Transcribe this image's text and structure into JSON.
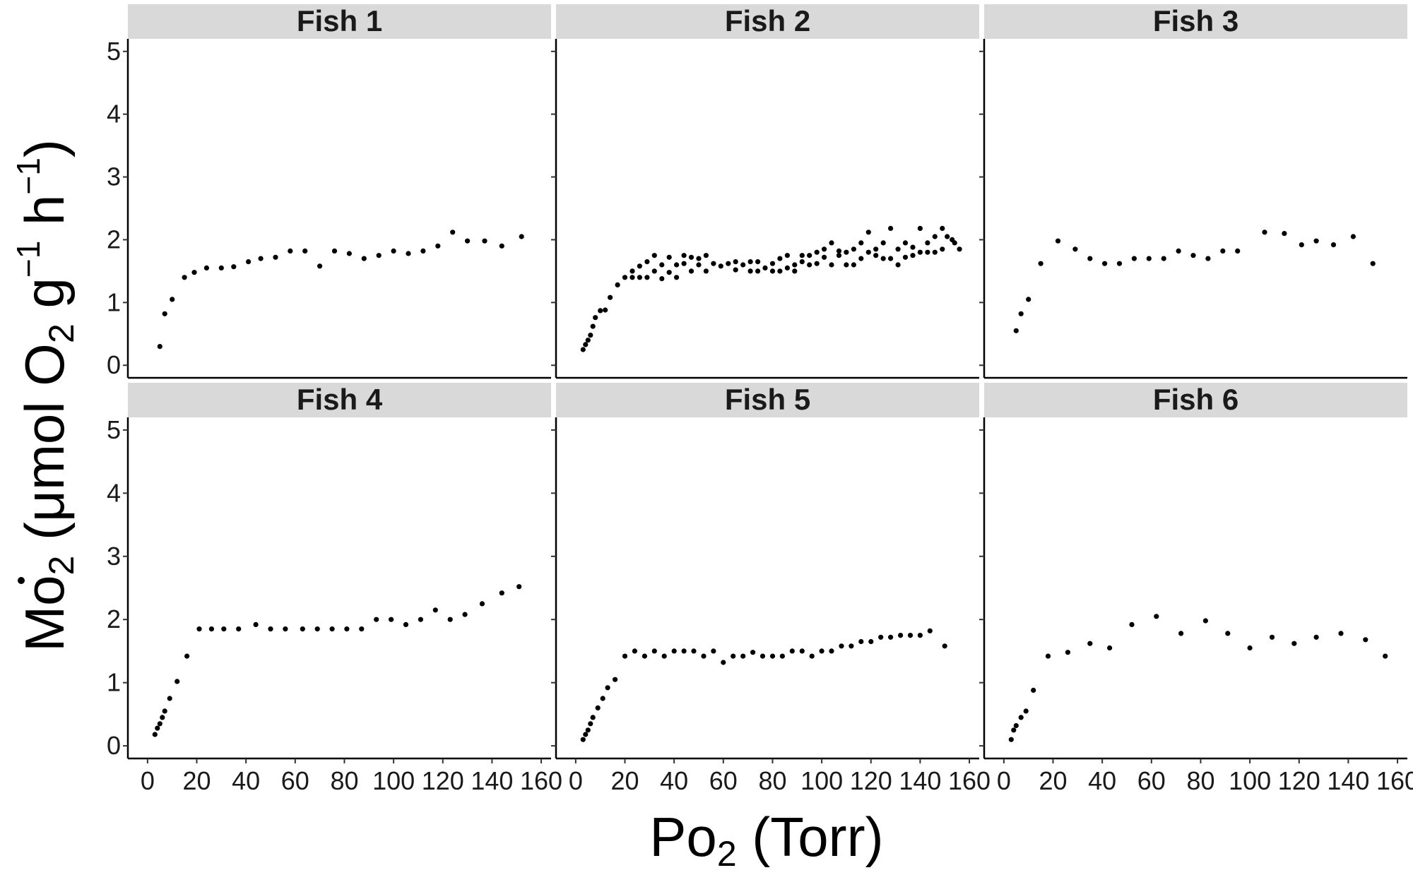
{
  "chart_data": {
    "type": "scatter",
    "layout": "facet-grid-2x3",
    "title": "",
    "xlabel": {
      "main": "Po",
      "sub": "2",
      "unit": " (Torr)"
    },
    "ylabel": {
      "main": "Mo",
      "sub": "2",
      "open": " (μmol O",
      "sub2": "2",
      "g": " g",
      "sup1": "−1",
      "h": " h",
      "sup2": "−1",
      "close": ")"
    },
    "xlim": [
      -8,
      164
    ],
    "ylim": [
      -0.2,
      5.2
    ],
    "x_ticks": [
      "0",
      "20",
      "40",
      "60",
      "80",
      "100",
      "120",
      "140",
      "160"
    ],
    "x_tick_values": [
      0,
      20,
      40,
      60,
      80,
      100,
      120,
      140,
      160
    ],
    "y_ticks": [
      "0",
      "1",
      "2",
      "3",
      "4",
      "5"
    ],
    "y_tick_values": [
      0,
      1,
      2,
      3,
      4,
      5
    ],
    "grid": false,
    "point_color": "#000000",
    "strip_color": "#d9d9d9",
    "panels": [
      {
        "name": "Fish 1",
        "points": [
          [
            5,
            0.3
          ],
          [
            7,
            0.82
          ],
          [
            10,
            1.05
          ],
          [
            15,
            1.4
          ],
          [
            19,
            1.48
          ],
          [
            24,
            1.55
          ],
          [
            30,
            1.55
          ],
          [
            35,
            1.57
          ],
          [
            41,
            1.65
          ],
          [
            46,
            1.7
          ],
          [
            52,
            1.72
          ],
          [
            58,
            1.82
          ],
          [
            64,
            1.82
          ],
          [
            70,
            1.58
          ],
          [
            76,
            1.82
          ],
          [
            82,
            1.78
          ],
          [
            88,
            1.7
          ],
          [
            94,
            1.75
          ],
          [
            100,
            1.82
          ],
          [
            106,
            1.78
          ],
          [
            112,
            1.82
          ],
          [
            118,
            1.9
          ],
          [
            124,
            2.12
          ],
          [
            130,
            1.98
          ],
          [
            137,
            1.98
          ],
          [
            144,
            1.9
          ],
          [
            152,
            2.05
          ]
        ]
      },
      {
        "name": "Fish 2",
        "points": [
          [
            3,
            0.25
          ],
          [
            4,
            0.33
          ],
          [
            5,
            0.4
          ],
          [
            6,
            0.48
          ],
          [
            7,
            0.62
          ],
          [
            8,
            0.76
          ],
          [
            10,
            0.87
          ],
          [
            12,
            0.88
          ],
          [
            14,
            1.08
          ],
          [
            17,
            1.28
          ],
          [
            20,
            1.4
          ],
          [
            23,
            1.4
          ],
          [
            23,
            1.5
          ],
          [
            26,
            1.4
          ],
          [
            26,
            1.58
          ],
          [
            29,
            1.4
          ],
          [
            29,
            1.65
          ],
          [
            32,
            1.5
          ],
          [
            32,
            1.75
          ],
          [
            35,
            1.38
          ],
          [
            35,
            1.6
          ],
          [
            38,
            1.48
          ],
          [
            38,
            1.72
          ],
          [
            41,
            1.4
          ],
          [
            41,
            1.6
          ],
          [
            44,
            1.62
          ],
          [
            44,
            1.75
          ],
          [
            47,
            1.5
          ],
          [
            47,
            1.72
          ],
          [
            50,
            1.6
          ],
          [
            50,
            1.7
          ],
          [
            53,
            1.5
          ],
          [
            53,
            1.75
          ],
          [
            56,
            1.62
          ],
          [
            59,
            1.58
          ],
          [
            62,
            1.62
          ],
          [
            65,
            1.52
          ],
          [
            65,
            1.65
          ],
          [
            68,
            1.6
          ],
          [
            71,
            1.5
          ],
          [
            71,
            1.65
          ],
          [
            74,
            1.5
          ],
          [
            74,
            1.65
          ],
          [
            77,
            1.55
          ],
          [
            80,
            1.5
          ],
          [
            80,
            1.62
          ],
          [
            83,
            1.5
          ],
          [
            83,
            1.7
          ],
          [
            86,
            1.55
          ],
          [
            86,
            1.75
          ],
          [
            89,
            1.5
          ],
          [
            89,
            1.6
          ],
          [
            92,
            1.65
          ],
          [
            92,
            1.75
          ],
          [
            95,
            1.6
          ],
          [
            95,
            1.75
          ],
          [
            98,
            1.62
          ],
          [
            98,
            1.8
          ],
          [
            101,
            1.72
          ],
          [
            101,
            1.85
          ],
          [
            104,
            1.6
          ],
          [
            104,
            1.95
          ],
          [
            107,
            1.75
          ],
          [
            107,
            1.82
          ],
          [
            110,
            1.6
          ],
          [
            110,
            1.8
          ],
          [
            113,
            1.6
          ],
          [
            113,
            1.85
          ],
          [
            116,
            1.7
          ],
          [
            116,
            1.95
          ],
          [
            119,
            1.8
          ],
          [
            119,
            2.12
          ],
          [
            122,
            1.75
          ],
          [
            122,
            1.85
          ],
          [
            125,
            1.7
          ],
          [
            125,
            1.95
          ],
          [
            128,
            1.7
          ],
          [
            128,
            2.18
          ],
          [
            131,
            1.6
          ],
          [
            131,
            1.85
          ],
          [
            134,
            1.72
          ],
          [
            134,
            1.95
          ],
          [
            137,
            1.75
          ],
          [
            137,
            1.88
          ],
          [
            140,
            1.8
          ],
          [
            140,
            2.18
          ],
          [
            143,
            1.8
          ],
          [
            143,
            1.95
          ],
          [
            146,
            1.8
          ],
          [
            146,
            2.05
          ],
          [
            149,
            1.85
          ],
          [
            149,
            2.18
          ],
          [
            151,
            2.05
          ],
          [
            153,
            2.0
          ],
          [
            154,
            1.95
          ],
          [
            156,
            1.85
          ]
        ]
      },
      {
        "name": "Fish 3",
        "points": [
          [
            5,
            0.55
          ],
          [
            7,
            0.82
          ],
          [
            10,
            1.05
          ],
          [
            15,
            1.62
          ],
          [
            22,
            1.98
          ],
          [
            29,
            1.85
          ],
          [
            35,
            1.7
          ],
          [
            41,
            1.62
          ],
          [
            47,
            1.62
          ],
          [
            53,
            1.7
          ],
          [
            59,
            1.7
          ],
          [
            65,
            1.7
          ],
          [
            71,
            1.82
          ],
          [
            77,
            1.75
          ],
          [
            83,
            1.7
          ],
          [
            89,
            1.82
          ],
          [
            95,
            1.82
          ],
          [
            106,
            2.12
          ],
          [
            114,
            2.1
          ],
          [
            121,
            1.92
          ],
          [
            127,
            1.98
          ],
          [
            134,
            1.92
          ],
          [
            142,
            2.05
          ],
          [
            150,
            1.62
          ]
        ]
      },
      {
        "name": "Fish 4",
        "points": [
          [
            3,
            0.18
          ],
          [
            4,
            0.28
          ],
          [
            5,
            0.35
          ],
          [
            6,
            0.45
          ],
          [
            7,
            0.55
          ],
          [
            9,
            0.75
          ],
          [
            12,
            1.02
          ],
          [
            16,
            1.42
          ],
          [
            21,
            1.85
          ],
          [
            26,
            1.85
          ],
          [
            31,
            1.85
          ],
          [
            37,
            1.85
          ],
          [
            44,
            1.92
          ],
          [
            50,
            1.85
          ],
          [
            56,
            1.85
          ],
          [
            63,
            1.85
          ],
          [
            69,
            1.85
          ],
          [
            75,
            1.85
          ],
          [
            81,
            1.85
          ],
          [
            87,
            1.85
          ],
          [
            93,
            2.0
          ],
          [
            99,
            2.0
          ],
          [
            105,
            1.92
          ],
          [
            111,
            2.0
          ],
          [
            117,
            2.15
          ],
          [
            123,
            2.0
          ],
          [
            129,
            2.08
          ],
          [
            136,
            2.25
          ],
          [
            144,
            2.42
          ],
          [
            151,
            2.52
          ]
        ]
      },
      {
        "name": "Fish 5",
        "points": [
          [
            3,
            0.1
          ],
          [
            4,
            0.18
          ],
          [
            5,
            0.25
          ],
          [
            6,
            0.35
          ],
          [
            7,
            0.45
          ],
          [
            9,
            0.6
          ],
          [
            11,
            0.75
          ],
          [
            13,
            0.92
          ],
          [
            16,
            1.05
          ],
          [
            20,
            1.42
          ],
          [
            24,
            1.5
          ],
          [
            28,
            1.42
          ],
          [
            32,
            1.5
          ],
          [
            36,
            1.42
          ],
          [
            40,
            1.5
          ],
          [
            44,
            1.5
          ],
          [
            48,
            1.5
          ],
          [
            52,
            1.42
          ],
          [
            56,
            1.5
          ],
          [
            60,
            1.32
          ],
          [
            64,
            1.42
          ],
          [
            68,
            1.42
          ],
          [
            72,
            1.48
          ],
          [
            76,
            1.42
          ],
          [
            80,
            1.42
          ],
          [
            84,
            1.42
          ],
          [
            88,
            1.5
          ],
          [
            92,
            1.5
          ],
          [
            96,
            1.42
          ],
          [
            100,
            1.5
          ],
          [
            104,
            1.5
          ],
          [
            108,
            1.58
          ],
          [
            112,
            1.58
          ],
          [
            116,
            1.65
          ],
          [
            120,
            1.65
          ],
          [
            124,
            1.72
          ],
          [
            128,
            1.72
          ],
          [
            132,
            1.75
          ],
          [
            136,
            1.75
          ],
          [
            140,
            1.75
          ],
          [
            144,
            1.82
          ],
          [
            150,
            1.58
          ]
        ]
      },
      {
        "name": "Fish 6",
        "points": [
          [
            3,
            0.1
          ],
          [
            4,
            0.25
          ],
          [
            5,
            0.32
          ],
          [
            7,
            0.45
          ],
          [
            9,
            0.55
          ],
          [
            12,
            0.88
          ],
          [
            18,
            1.42
          ],
          [
            26,
            1.48
          ],
          [
            35,
            1.62
          ],
          [
            43,
            1.55
          ],
          [
            52,
            1.92
          ],
          [
            62,
            2.05
          ],
          [
            72,
            1.78
          ],
          [
            82,
            1.98
          ],
          [
            91,
            1.78
          ],
          [
            100,
            1.55
          ],
          [
            109,
            1.72
          ],
          [
            118,
            1.62
          ],
          [
            127,
            1.72
          ],
          [
            137,
            1.78
          ],
          [
            147,
            1.68
          ],
          [
            155,
            1.42
          ]
        ]
      }
    ]
  }
}
